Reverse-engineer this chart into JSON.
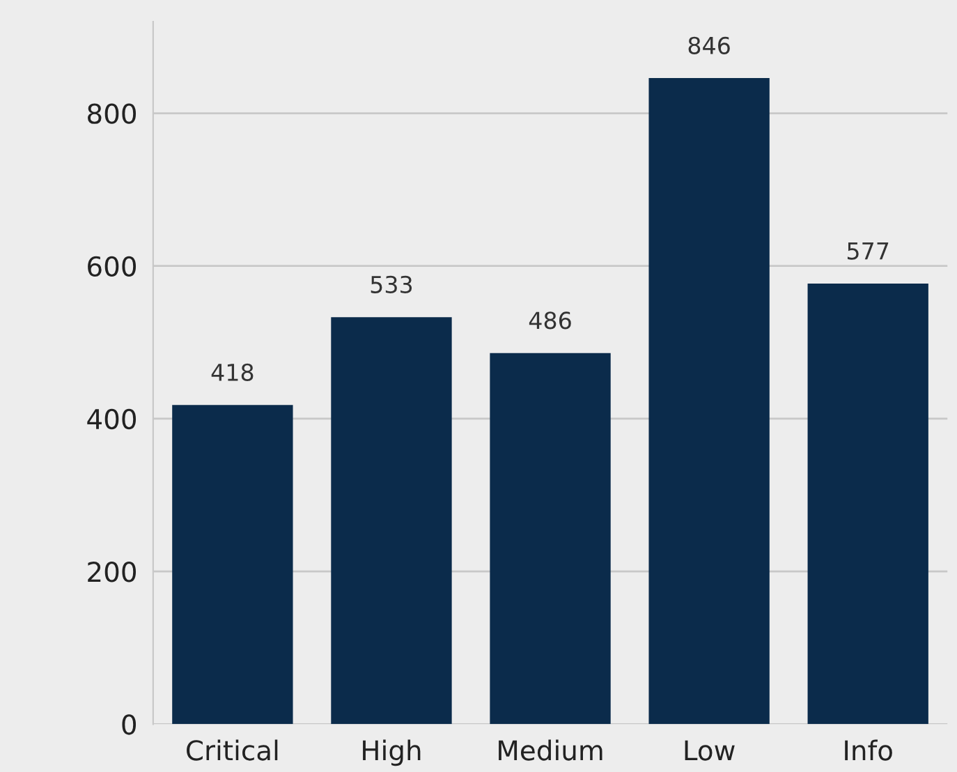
{
  "chart_data": {
    "type": "bar",
    "categories": [
      "Critical",
      "High",
      "Medium",
      "Low",
      "Info"
    ],
    "values": [
      418,
      533,
      486,
      846,
      577
    ],
    "color": "#0b2b4b",
    "ylim": [
      0,
      920
    ],
    "yticks": [
      0,
      200,
      400,
      600,
      800
    ],
    "grid": "y",
    "data_labels": true
  }
}
